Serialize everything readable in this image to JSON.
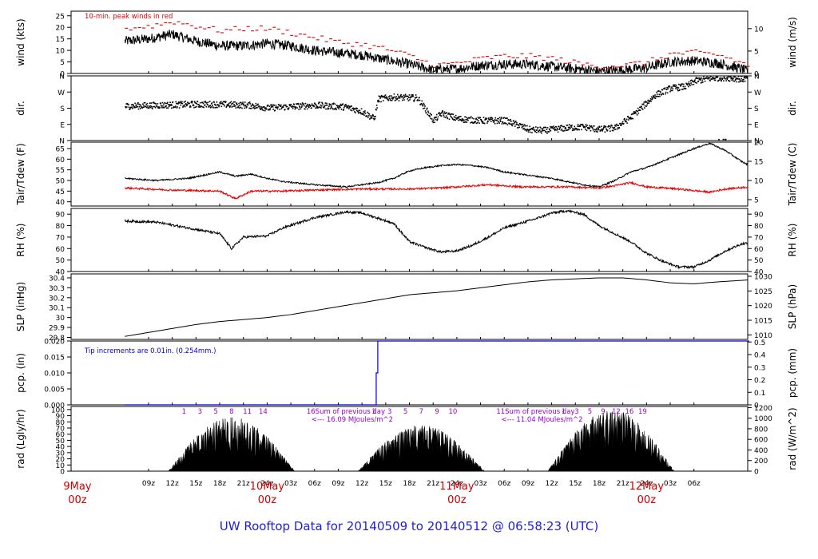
{
  "page": {
    "footer": "UW Rooftop Data for 20140509  to  20140512 @ 06:58:23  (UTC)"
  },
  "colors": {
    "axis": "#000000",
    "red": "#e00000",
    "blue": "#0000cc",
    "purple": "#9900cc",
    "date_red": "#cc0000",
    "footer_blue": "#1f1fd1"
  },
  "chart_data": [
    {
      "type": "line",
      "id": "wind",
      "ylabel": "wind (kts)",
      "ylabel_right": "wind (m/s)",
      "ylim": [
        0,
        27
      ],
      "yticks": [
        0,
        5,
        10,
        15,
        20,
        25
      ],
      "yticks_right": {
        "values": [
          0,
          5,
          10
        ],
        "factor": 0.5144
      },
      "annotation": "10-min. peak winds in red",
      "series": [
        {
          "key": "wind_speed",
          "color": "#000000",
          "style": "noisy_line",
          "noise": 2.2,
          "x": [
            0,
            3,
            6,
            9,
            12,
            15,
            18,
            21,
            24,
            27,
            30,
            33,
            36,
            39,
            42,
            45,
            48,
            51,
            54,
            57,
            60,
            63,
            66,
            69,
            72,
            75,
            78,
            79
          ],
          "y": [
            14,
            15,
            17,
            14,
            12,
            12,
            13,
            12,
            10,
            9,
            8,
            6,
            4,
            1.5,
            2,
            3.5,
            4,
            4,
            3,
            2,
            1,
            1.5,
            2.5,
            5,
            5.5,
            4.5,
            2,
            0.5
          ]
        },
        {
          "key": "peak_gust",
          "color": "#e00000",
          "style": "dashes",
          "x": [
            0,
            3,
            6,
            9,
            12,
            15,
            18,
            21,
            24,
            27,
            30,
            33,
            36,
            39,
            42,
            45,
            48,
            51,
            54,
            57,
            60,
            63,
            66,
            69,
            72,
            75,
            78,
            79
          ],
          "y": [
            19,
            20,
            22,
            20,
            18,
            19,
            19,
            17,
            15,
            13,
            12,
            10,
            7,
            3,
            4,
            6,
            7,
            7,
            6,
            4,
            2.5,
            3,
            4.5,
            8,
            8.5,
            7.5,
            4,
            1.5
          ]
        }
      ]
    },
    {
      "type": "scatter",
      "id": "dir",
      "ylabel": "dir.",
      "ylabel_right": "dir.",
      "ylim": [
        0,
        360
      ],
      "ytick_labels": [
        "N",
        "E",
        "S",
        "W",
        "N"
      ],
      "ytick_values": [
        0,
        90,
        180,
        270,
        360
      ],
      "series": [
        {
          "key": "wind_direction",
          "color": "#000000",
          "style": "dots",
          "noise": 18,
          "x": [
            0,
            4,
            8,
            12,
            16,
            18,
            20,
            24,
            28,
            30,
            31.5,
            32,
            34,
            37,
            39,
            40,
            42,
            45,
            48,
            50,
            51,
            53,
            56,
            58,
            60,
            62,
            64,
            67,
            69,
            71,
            72,
            74,
            76,
            78,
            79
          ],
          "y": [
            190,
            195,
            200,
            200,
            195,
            180,
            185,
            195,
            185,
            160,
            120,
            230,
            240,
            235,
            110,
            150,
            120,
            110,
            110,
            80,
            60,
            55,
            70,
            75,
            60,
            70,
            130,
            250,
            290,
            300,
            330,
            345,
            350,
            340,
            350
          ]
        }
      ]
    },
    {
      "type": "line",
      "id": "temp",
      "ylabel": "Tair/Tdew (F)",
      "ylabel_right": "Tair/Tdew (C)",
      "ylim": [
        38,
        68
      ],
      "yticks": [
        40,
        45,
        50,
        55,
        60,
        65
      ],
      "yticks_right": {
        "values": [
          5,
          10,
          15,
          20
        ],
        "celsius": true
      },
      "series": [
        {
          "key": "air_temp",
          "color": "#000000",
          "style": "noisy_line",
          "noise": 0.35,
          "x": [
            0,
            4,
            8,
            12,
            14,
            16,
            18,
            20,
            24,
            28,
            30,
            32,
            34,
            36,
            38,
            40,
            42,
            44,
            46,
            48,
            50,
            52,
            54,
            56,
            58,
            60,
            62,
            64,
            66,
            68,
            70,
            72,
            74,
            76,
            78,
            79
          ],
          "y": [
            51,
            50,
            51,
            54,
            52,
            53,
            51,
            49.5,
            48,
            47,
            48,
            49,
            51,
            54.5,
            56,
            57,
            57.5,
            57,
            56,
            54,
            53,
            52,
            51,
            49.5,
            48,
            47,
            50,
            54,
            56,
            59,
            62,
            65,
            67.5,
            64,
            59,
            57
          ]
        },
        {
          "key": "dew_point",
          "color": "#e00000",
          "style": "noisy_line",
          "noise": 0.45,
          "x": [
            0,
            6,
            12,
            14,
            16,
            20,
            24,
            30,
            36,
            40,
            46,
            50,
            56,
            60,
            62,
            64,
            66,
            70,
            74,
            76,
            79
          ],
          "y": [
            46.5,
            45.5,
            45,
            41.5,
            45,
            45,
            45.5,
            46,
            46,
            46.5,
            48,
            47,
            47,
            46.5,
            47.5,
            49,
            47,
            46,
            44.5,
            46,
            47
          ]
        }
      ]
    },
    {
      "type": "line",
      "id": "rh",
      "ylabel": "RH (%)",
      "ylabel_right": "RH (%)",
      "ylim": [
        40,
        95
      ],
      "yticks": [
        40,
        50,
        60,
        70,
        80,
        90
      ],
      "series": [
        {
          "key": "relative_humidity",
          "color": "#000000",
          "style": "noisy_line",
          "noise": 1.0,
          "x": [
            0,
            4,
            8,
            12,
            13.5,
            15,
            18,
            20,
            24,
            28,
            30,
            34,
            36,
            38,
            40,
            42,
            44,
            46,
            48,
            50,
            52,
            54,
            56,
            58,
            60,
            62,
            64,
            66,
            68,
            70,
            72,
            74,
            76,
            78,
            79
          ],
          "y": [
            84,
            83,
            78,
            73,
            60,
            70,
            71,
            78,
            87,
            92,
            91,
            82,
            66,
            61,
            57,
            58,
            63,
            70,
            78,
            82,
            86,
            91,
            93,
            90,
            80,
            73,
            66,
            56,
            49,
            44,
            44,
            50,
            58,
            64,
            65
          ]
        }
      ]
    },
    {
      "type": "line",
      "id": "slp",
      "ylabel": "SLP (inHg)",
      "ylabel_right": "SLP (hPa)",
      "ylim": [
        29.78,
        30.44
      ],
      "yticks": [
        29.8,
        29.9,
        30.0,
        30.1,
        30.2,
        30.3,
        30.4
      ],
      "yticks_right": {
        "values": [
          1010,
          1015,
          1020,
          1025,
          1030
        ],
        "hpa": true
      },
      "series": [
        {
          "key": "sea_level_pressure",
          "color": "#000000",
          "style": "line",
          "x": [
            0,
            3,
            6,
            9,
            12,
            15,
            18,
            21,
            24,
            27,
            30,
            33,
            36,
            39,
            42,
            45,
            48,
            51,
            54,
            57,
            60,
            63,
            66,
            69,
            72,
            75,
            79
          ],
          "y": [
            29.81,
            29.85,
            29.89,
            29.93,
            29.96,
            29.98,
            30.0,
            30.03,
            30.07,
            30.11,
            30.15,
            30.19,
            30.23,
            30.25,
            30.27,
            30.3,
            30.33,
            30.36,
            30.38,
            30.39,
            30.4,
            30.4,
            30.38,
            30.35,
            30.34,
            30.36,
            30.38
          ]
        }
      ]
    },
    {
      "type": "line",
      "id": "pcp",
      "ylabel": "pcp. (in)",
      "ylabel_right": "pcp. (mm)",
      "ylim": [
        0,
        0.02
      ],
      "yticks": [
        0.0,
        0.005,
        0.01,
        0.015,
        0.02
      ],
      "ytick_labels": [
        "0.000",
        "0.005",
        "0.010",
        "0.015",
        "0.020"
      ],
      "yticks_right": {
        "values": [
          0,
          0.1,
          0.2,
          0.3,
          0.4,
          0.5
        ],
        "labels": [
          "0",
          "0.1",
          "0.2",
          "0.3",
          "0.4",
          "0.5"
        ],
        "mm": true
      },
      "annotation": "Tip increments are 0.01in. (0.254mm.)",
      "series": [
        {
          "key": "precip",
          "color": "#0000cc",
          "style": "step",
          "x": [
            0,
            31.6,
            31.8,
            32.0,
            79
          ],
          "y": [
            0,
            0,
            0.01,
            0.02,
            0.02
          ]
        }
      ]
    },
    {
      "type": "area",
      "id": "rad",
      "ylabel": "rad (Lgly/hr)",
      "ylabel_right": "rad (W/m^2)",
      "ylim": [
        0,
        105
      ],
      "yticks": [
        0,
        10,
        20,
        30,
        40,
        50,
        60,
        70,
        80,
        90,
        100
      ],
      "yticks_right": {
        "values": [
          0,
          200,
          400,
          600,
          800,
          1000,
          1200
        ],
        "wm2": true
      },
      "days": [
        {
          "sunrise": 5.5,
          "sunset": 21.5,
          "peak": 88,
          "hour_labels": [
            "1",
            "3",
            "5",
            "8",
            "11",
            "14"
          ],
          "label": "16Sum of previous day",
          "total": "<--- 16.09 MJoules/m^2"
        },
        {
          "sunrise": 29.5,
          "sunset": 45.5,
          "peak": 75,
          "hour_labels": [
            "1",
            "3",
            "5",
            "7",
            "9",
            "10"
          ],
          "label": "11Sum of previous day",
          "total": "<--- 11.04 MJoules/m^2"
        },
        {
          "sunrise": 53.5,
          "sunset": 69.5,
          "peak": 100,
          "hour_labels": [
            "1",
            "3",
            "5",
            "9",
            "12",
            "16",
            "19"
          ]
        }
      ]
    }
  ],
  "x_axis": {
    "xlim": [
      -6.8,
      78.8
    ],
    "hour_ticks": [
      {
        "x": 3,
        "label": "09z"
      },
      {
        "x": 6,
        "label": "12z"
      },
      {
        "x": 9,
        "label": "15z"
      },
      {
        "x": 12,
        "label": "18z"
      },
      {
        "x": 15,
        "label": "21z"
      },
      {
        "x": 18,
        "label": "24z"
      },
      {
        "x": 21,
        "label": "03z"
      },
      {
        "x": 24,
        "label": "06z"
      },
      {
        "x": 27,
        "label": "09z"
      },
      {
        "x": 30,
        "label": "12z"
      },
      {
        "x": 33,
        "label": "15z"
      },
      {
        "x": 36,
        "label": "18z"
      },
      {
        "x": 39,
        "label": "21z"
      },
      {
        "x": 42,
        "label": "24z"
      },
      {
        "x": 45,
        "label": "03z"
      },
      {
        "x": 48,
        "label": "06z"
      },
      {
        "x": 51,
        "label": "09z"
      },
      {
        "x": 54,
        "label": "12z"
      },
      {
        "x": 57,
        "label": "15z"
      },
      {
        "x": 60,
        "label": "18z"
      },
      {
        "x": 63,
        "label": "21z"
      },
      {
        "x": 66,
        "label": "24z"
      },
      {
        "x": 69,
        "label": "03z"
      },
      {
        "x": 72,
        "label": "06z"
      }
    ],
    "date_labels": [
      {
        "x": -6,
        "line1": "9May",
        "line2": "00z"
      },
      {
        "x": 18,
        "line1": "10May",
        "line2": "00z"
      },
      {
        "x": 42,
        "line1": "11May",
        "line2": "00z"
      },
      {
        "x": 66,
        "line1": "12May",
        "line2": "00z"
      }
    ]
  }
}
